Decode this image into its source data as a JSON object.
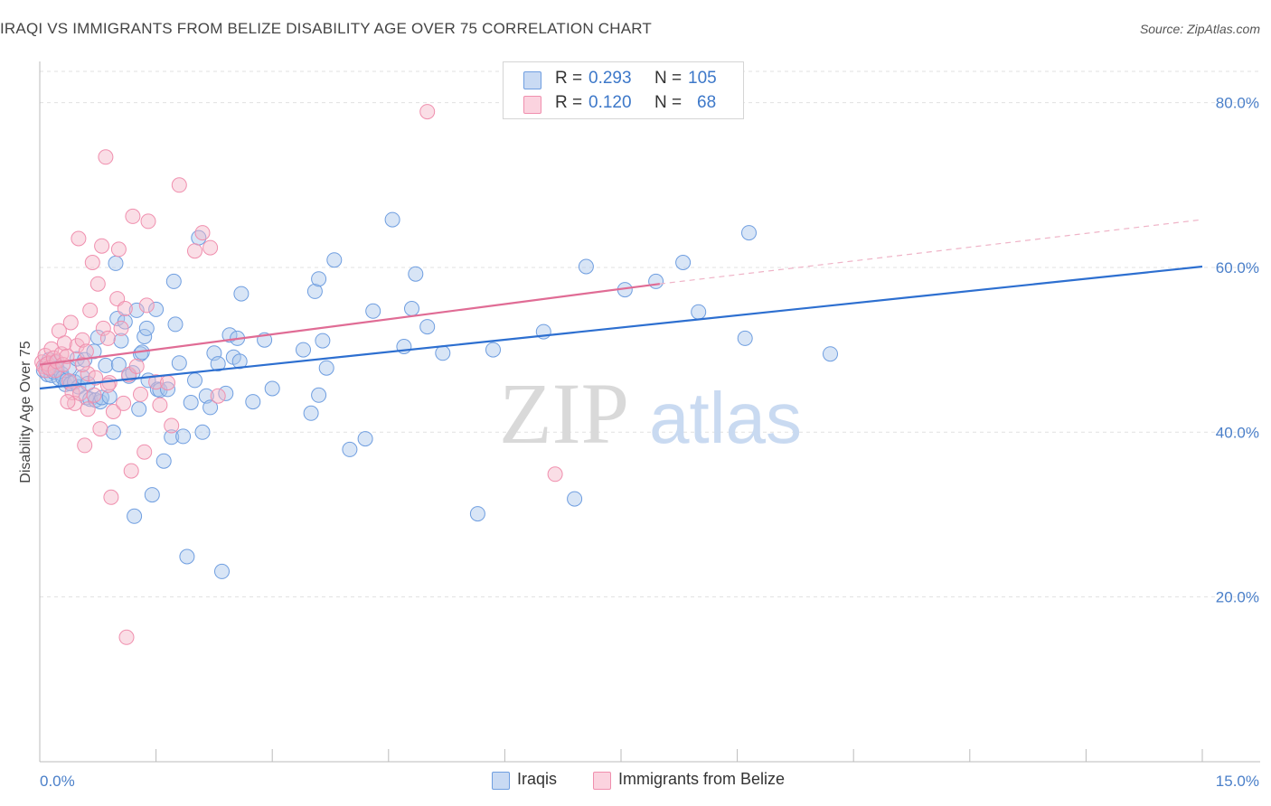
{
  "title": "IRAQI VS IMMIGRANTS FROM BELIZE DISABILITY AGE OVER 75 CORRELATION CHART",
  "source": "Source: ZipAtlas.com",
  "watermark": {
    "zip": "ZIP",
    "atlas": "atlas"
  },
  "legend": {
    "rows": [
      {
        "r_label": "R =",
        "r_value": "0.293",
        "n_label": "N =",
        "n_value": "105",
        "color": "#a9c5ec"
      },
      {
        "r_label": "R =",
        "r_value": "0.120",
        "n_label": "N =",
        "n_value": "68",
        "color": "#f4b6c8"
      }
    ]
  },
  "bottom_legend": [
    {
      "label": "Iraqis",
      "color": "#a9c5ec"
    },
    {
      "label": "Immigrants from Belize",
      "color": "#f4b6c8"
    }
  ],
  "chart_data": {
    "type": "scatter",
    "title": "IRAQI VS IMMIGRANTS FROM BELIZE DISABILITY AGE OVER 75 CORRELATION CHART",
    "xlabel": "",
    "ylabel": "Disability Age Over 75",
    "xlim": [
      0,
      15
    ],
    "ylim": [
      0,
      85
    ],
    "x_tick_labels": [
      "0.0%",
      "15.0%"
    ],
    "y_ticks": [
      20,
      40,
      60,
      80
    ],
    "y_tick_labels": [
      "20.0%",
      "40.0%",
      "60.0%",
      "80.0%"
    ],
    "grid": true,
    "legend_position": "top-center",
    "series": [
      {
        "name": "Iraqis",
        "color": "#6f9ee0",
        "trend": {
          "x": [
            0,
            15
          ],
          "y": [
            45.3,
            60.1
          ],
          "style": "solid",
          "color": "#2d6fd0"
        },
        "points": [
          [
            0.05,
            47.5
          ],
          [
            0.08,
            48.2
          ],
          [
            0.1,
            47.0
          ],
          [
            0.12,
            48.8
          ],
          [
            0.15,
            46.9
          ],
          [
            0.18,
            47.3
          ],
          [
            0.2,
            48.5
          ],
          [
            0.22,
            47.8
          ],
          [
            0.25,
            46.5
          ],
          [
            0.28,
            47.1
          ],
          [
            0.3,
            46.6
          ],
          [
            0.33,
            45.8
          ],
          [
            0.35,
            46.3
          ],
          [
            0.38,
            47.8
          ],
          [
            0.4,
            45.9
          ],
          [
            0.45,
            46.1
          ],
          [
            0.48,
            48.9
          ],
          [
            0.5,
            45.5
          ],
          [
            0.55,
            46.7
          ],
          [
            0.58,
            48.8
          ],
          [
            0.6,
            44.2
          ],
          [
            0.62,
            45.9
          ],
          [
            0.65,
            44.0
          ],
          [
            0.7,
            49.8
          ],
          [
            0.72,
            43.9
          ],
          [
            0.75,
            51.5
          ],
          [
            0.78,
            43.7
          ],
          [
            0.8,
            44.2
          ],
          [
            0.85,
            48.1
          ],
          [
            0.9,
            44.3
          ],
          [
            0.95,
            40.0
          ],
          [
            1.0,
            53.8
          ],
          [
            1.02,
            48.2
          ],
          [
            1.05,
            51.1
          ],
          [
            1.1,
            53.4
          ],
          [
            1.15,
            46.8
          ],
          [
            1.2,
            47.2
          ],
          [
            1.25,
            54.8
          ],
          [
            1.28,
            42.8
          ],
          [
            1.3,
            49.5
          ],
          [
            1.32,
            49.7
          ],
          [
            1.35,
            51.6
          ],
          [
            1.38,
            52.6
          ],
          [
            1.4,
            46.3
          ],
          [
            1.45,
            32.4
          ],
          [
            1.5,
            54.9
          ],
          [
            1.52,
            45.2
          ],
          [
            1.55,
            45.1
          ],
          [
            1.6,
            36.5
          ],
          [
            1.65,
            45.2
          ],
          [
            1.7,
            39.4
          ],
          [
            1.75,
            53.1
          ],
          [
            1.8,
            48.4
          ],
          [
            1.85,
            39.5
          ],
          [
            1.9,
            24.9
          ],
          [
            1.95,
            43.6
          ],
          [
            2.0,
            46.3
          ],
          [
            2.05,
            63.6
          ],
          [
            2.1,
            40.0
          ],
          [
            2.15,
            44.4
          ],
          [
            2.2,
            43.0
          ],
          [
            2.25,
            49.6
          ],
          [
            2.3,
            48.3
          ],
          [
            2.35,
            23.1
          ],
          [
            2.4,
            44.7
          ],
          [
            2.45,
            51.8
          ],
          [
            2.5,
            49.1
          ],
          [
            2.55,
            51.4
          ],
          [
            2.6,
            56.8
          ],
          [
            2.75,
            43.7
          ],
          [
            2.9,
            51.2
          ],
          [
            3.0,
            45.3
          ],
          [
            3.4,
            50.0
          ],
          [
            3.5,
            42.3
          ],
          [
            3.55,
            57.1
          ],
          [
            3.6,
            58.6
          ],
          [
            3.6,
            44.5
          ],
          [
            3.65,
            51.1
          ],
          [
            3.7,
            47.8
          ],
          [
            3.8,
            60.9
          ],
          [
            4.0,
            37.9
          ],
          [
            4.2,
            39.2
          ],
          [
            4.3,
            54.7
          ],
          [
            4.55,
            65.8
          ],
          [
            4.7,
            50.4
          ],
          [
            4.8,
            55.0
          ],
          [
            4.85,
            59.2
          ],
          [
            5.0,
            52.8
          ],
          [
            5.2,
            49.6
          ],
          [
            5.65,
            30.1
          ],
          [
            5.85,
            50.0
          ],
          [
            6.5,
            52.2
          ],
          [
            6.9,
            31.9
          ],
          [
            7.05,
            60.1
          ],
          [
            7.55,
            57.3
          ],
          [
            7.95,
            58.3
          ],
          [
            8.3,
            60.6
          ],
          [
            8.5,
            54.6
          ],
          [
            9.1,
            51.4
          ],
          [
            9.15,
            64.2
          ],
          [
            10.2,
            49.5
          ],
          [
            1.22,
            29.8
          ],
          [
            0.98,
            60.5
          ],
          [
            2.58,
            48.6
          ],
          [
            1.73,
            58.3
          ]
        ]
      },
      {
        "name": "Immigrants from Belize",
        "color": "#f08fae",
        "trend": {
          "x": [
            0,
            8
          ],
          "y": [
            48.2,
            58.0
          ],
          "style": "solid",
          "color": "#e06c95",
          "extension": {
            "x": [
              8,
              15
            ],
            "y": [
              58.0,
              65.8
            ],
            "style": "dashed"
          }
        },
        "points": [
          [
            0.03,
            48.5
          ],
          [
            0.05,
            48.0
          ],
          [
            0.07,
            49.3
          ],
          [
            0.08,
            47.5
          ],
          [
            0.1,
            48.3
          ],
          [
            0.12,
            47.8
          ],
          [
            0.15,
            50.1
          ],
          [
            0.18,
            49.0
          ],
          [
            0.2,
            47.5
          ],
          [
            0.22,
            48.6
          ],
          [
            0.25,
            52.3
          ],
          [
            0.28,
            49.5
          ],
          [
            0.3,
            48.2
          ],
          [
            0.32,
            50.8
          ],
          [
            0.35,
            49.2
          ],
          [
            0.38,
            46.2
          ],
          [
            0.4,
            53.3
          ],
          [
            0.42,
            44.8
          ],
          [
            0.45,
            43.5
          ],
          [
            0.48,
            50.5
          ],
          [
            0.5,
            63.5
          ],
          [
            0.52,
            44.7
          ],
          [
            0.55,
            51.2
          ],
          [
            0.58,
            38.4
          ],
          [
            0.6,
            49.8
          ],
          [
            0.62,
            47.1
          ],
          [
            0.65,
            54.8
          ],
          [
            0.68,
            60.6
          ],
          [
            0.7,
            44.5
          ],
          [
            0.72,
            46.6
          ],
          [
            0.75,
            58.0
          ],
          [
            0.78,
            40.4
          ],
          [
            0.8,
            62.6
          ],
          [
            0.82,
            52.6
          ],
          [
            0.85,
            73.4
          ],
          [
            0.88,
            51.4
          ],
          [
            0.9,
            46.0
          ],
          [
            0.92,
            32.1
          ],
          [
            0.95,
            42.5
          ],
          [
            1.0,
            56.2
          ],
          [
            1.02,
            62.2
          ],
          [
            1.05,
            52.6
          ],
          [
            1.1,
            55.0
          ],
          [
            1.12,
            15.1
          ],
          [
            1.15,
            47.0
          ],
          [
            1.18,
            35.3
          ],
          [
            1.2,
            66.2
          ],
          [
            1.25,
            48.0
          ],
          [
            1.3,
            44.6
          ],
          [
            1.35,
            37.6
          ],
          [
            1.38,
            55.4
          ],
          [
            1.4,
            65.6
          ],
          [
            1.5,
            46.1
          ],
          [
            1.55,
            43.3
          ],
          [
            1.7,
            40.8
          ],
          [
            1.8,
            70.0
          ],
          [
            2.0,
            62.0
          ],
          [
            2.1,
            64.2
          ],
          [
            2.2,
            62.4
          ],
          [
            2.3,
            44.4
          ],
          [
            5.0,
            78.9
          ],
          [
            6.65,
            34.9
          ],
          [
            0.55,
            48.2
          ],
          [
            0.62,
            42.8
          ],
          [
            0.36,
            43.7
          ],
          [
            0.88,
            45.7
          ],
          [
            1.65,
            46.0
          ],
          [
            1.08,
            43.5
          ]
        ]
      }
    ]
  }
}
